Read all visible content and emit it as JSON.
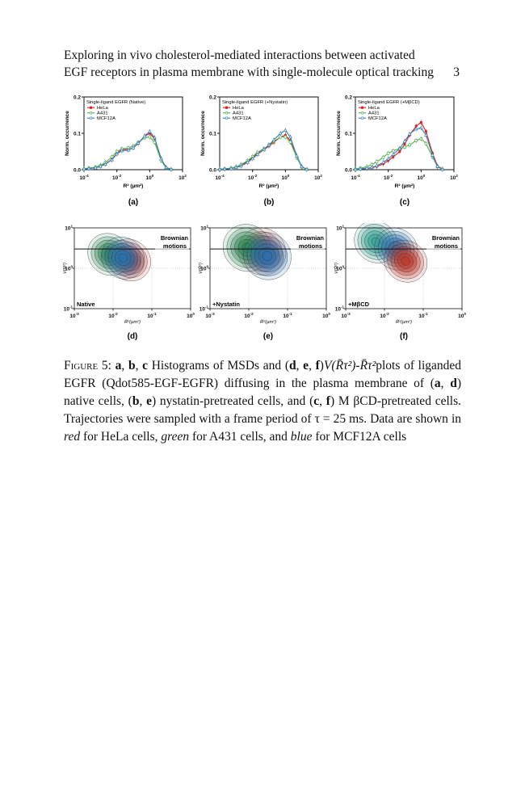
{
  "header": {
    "title_line1": "Exploring in vivo cholesterol-mediated interactions between activated",
    "title_line2": "EGF receptors in plasma membrane with single-molecule optical tracking",
    "page_number": "3"
  },
  "chart_data": [
    {
      "type": "line",
      "panel_label": "(a)",
      "legend_title": "Single-ligand EGFR (Native)",
      "xlabel": "R² (µm²)",
      "ylabel": "Norm. occurrence",
      "xscale": "log",
      "xlim": [
        0.0001,
        100
      ],
      "ylim": [
        0,
        0.2
      ],
      "x_ticks": [
        "10-4",
        "10-2",
        "100",
        "102"
      ],
      "y_ticks": [
        "0.0",
        "0.1",
        "0.2"
      ],
      "x": [
        0.0001,
        0.0002,
        0.0005,
        0.001,
        0.002,
        0.005,
        0.01,
        0.02,
        0.05,
        0.1,
        0.2,
        0.5,
        1,
        2,
        5,
        10,
        20
      ],
      "series": [
        {
          "name": "HeLa",
          "color": "#e41a1c",
          "values": [
            0.002,
            0.004,
            0.006,
            0.01,
            0.016,
            0.028,
            0.045,
            0.055,
            0.056,
            0.06,
            0.072,
            0.092,
            0.1,
            0.085,
            0.03,
            0.006,
            0.001
          ]
        },
        {
          "name": "A431",
          "color": "#4daf4a",
          "values": [
            0.002,
            0.004,
            0.007,
            0.012,
            0.02,
            0.035,
            0.05,
            0.057,
            0.06,
            0.065,
            0.075,
            0.088,
            0.09,
            0.075,
            0.025,
            0.005,
            0.001
          ]
        },
        {
          "name": "MCF12A",
          "color": "#377eb8",
          "values": [
            0.002,
            0.003,
            0.005,
            0.009,
            0.015,
            0.027,
            0.043,
            0.052,
            0.054,
            0.06,
            0.073,
            0.093,
            0.105,
            0.088,
            0.03,
            0.006,
            0.001
          ]
        }
      ]
    },
    {
      "type": "line",
      "panel_label": "(b)",
      "legend_title": "Single-ligand EGFR (+Nystatin)",
      "xlabel": "R² (µm²)",
      "ylabel": "Norm. occurrence",
      "xscale": "log",
      "xlim": [
        0.0001,
        100
      ],
      "ylim": [
        0,
        0.2
      ],
      "x_ticks": [
        "10-4",
        "10-2",
        "100",
        "102"
      ],
      "y_ticks": [
        "0.0",
        "0.1",
        "0.2"
      ],
      "x": [
        0.0001,
        0.0002,
        0.0005,
        0.001,
        0.002,
        0.005,
        0.01,
        0.02,
        0.05,
        0.1,
        0.2,
        0.5,
        1,
        2,
        5,
        10,
        20
      ],
      "series": [
        {
          "name": "HeLa",
          "color": "#e41a1c",
          "values": [
            0.001,
            0.002,
            0.004,
            0.007,
            0.012,
            0.022,
            0.033,
            0.045,
            0.055,
            0.065,
            0.075,
            0.09,
            0.095,
            0.08,
            0.035,
            0.008,
            0.001
          ]
        },
        {
          "name": "A431",
          "color": "#4daf4a",
          "values": [
            0.001,
            0.002,
            0.004,
            0.008,
            0.014,
            0.025,
            0.036,
            0.048,
            0.058,
            0.068,
            0.078,
            0.09,
            0.09,
            0.076,
            0.033,
            0.007,
            0.001
          ]
        },
        {
          "name": "MCF12A",
          "color": "#377eb8",
          "values": [
            0.001,
            0.002,
            0.003,
            0.006,
            0.01,
            0.02,
            0.03,
            0.042,
            0.055,
            0.068,
            0.082,
            0.1,
            0.108,
            0.09,
            0.038,
            0.008,
            0.001
          ]
        }
      ]
    },
    {
      "type": "line",
      "panel_label": "(c)",
      "legend_title": "Single-ligand EGFR (+MβCD)",
      "xlabel": "R² (µm²)",
      "ylabel": "Norm. occurrence",
      "xscale": "log",
      "xlim": [
        0.0001,
        100
      ],
      "ylim": [
        0,
        0.2
      ],
      "x_ticks": [
        "10-4",
        "10-2",
        "100",
        "102"
      ],
      "y_ticks": [
        "0.0",
        "0.1",
        "0.2"
      ],
      "x": [
        0.0001,
        0.0002,
        0.0005,
        0.001,
        0.002,
        0.005,
        0.01,
        0.02,
        0.05,
        0.1,
        0.2,
        0.5,
        1,
        2,
        5,
        10,
        20
      ],
      "series": [
        {
          "name": "HeLa",
          "color": "#e41a1c",
          "values": [
            0.001,
            0.002,
            0.003,
            0.005,
            0.009,
            0.016,
            0.025,
            0.035,
            0.05,
            0.07,
            0.095,
            0.12,
            0.13,
            0.105,
            0.045,
            0.01,
            0.002
          ]
        },
        {
          "name": "A431",
          "color": "#4daf4a",
          "values": [
            0.002,
            0.004,
            0.008,
            0.014,
            0.022,
            0.034,
            0.045,
            0.052,
            0.058,
            0.062,
            0.068,
            0.08,
            0.085,
            0.072,
            0.035,
            0.008,
            0.001
          ]
        },
        {
          "name": "MCF12A",
          "color": "#377eb8",
          "values": [
            0.001,
            0.002,
            0.004,
            0.006,
            0.011,
            0.02,
            0.03,
            0.042,
            0.058,
            0.078,
            0.098,
            0.112,
            0.115,
            0.095,
            0.04,
            0.009,
            0.001
          ]
        }
      ]
    },
    {
      "type": "heatmap",
      "panel_label": "(d)",
      "annotation": "Native",
      "region_label_1": "Brownian",
      "region_label_2": "motions",
      "xlabel": "R̄²(µm²)",
      "ylabel": "V(R̄²)",
      "xscale": "log",
      "yscale": "log",
      "xlim": [
        0.001,
        1
      ],
      "ylim": [
        0.1,
        10
      ],
      "x_ticks": [
        "10-3",
        "10-2",
        "10-1",
        "100"
      ],
      "y_ticks": [
        "10-1",
        "100",
        "101"
      ],
      "brownian_line_y": 3,
      "clouds": [
        {
          "name": "HeLa",
          "color": "#c0392b",
          "center": [
            0.026,
            1.6
          ],
          "spread": [
            0.55,
            0.35
          ]
        },
        {
          "name": "A431",
          "color": "#2e8b57",
          "center": [
            0.008,
            2.2
          ],
          "spread": [
            0.55,
            0.35
          ]
        },
        {
          "name": "MCF12A",
          "color": "#2a6fb0",
          "center": [
            0.018,
            1.8
          ],
          "spread": [
            0.55,
            0.35
          ]
        }
      ]
    },
    {
      "type": "heatmap",
      "panel_label": "(e)",
      "annotation": "+Nystatin",
      "region_label_1": "Brownian",
      "region_label_2": "motions",
      "xlabel": "R̄²(µm²)",
      "ylabel": "V(R̄²)",
      "xscale": "log",
      "yscale": "log",
      "xlim": [
        0.001,
        1
      ],
      "ylim": [
        0.1,
        10
      ],
      "x_ticks": [
        "10-3",
        "10-2",
        "10-1",
        "100"
      ],
      "y_ticks": [
        "10-1",
        "100",
        "101"
      ],
      "brownian_line_y": 3,
      "clouds": [
        {
          "name": "HeLa",
          "color": "#c0392b",
          "center": [
            0.022,
            2.6
          ],
          "spread": [
            0.6,
            0.4
          ]
        },
        {
          "name": "A431",
          "color": "#2e8b57",
          "center": [
            0.009,
            3.2
          ],
          "spread": [
            0.6,
            0.4
          ]
        },
        {
          "name": "MCF12A",
          "color": "#2a6fb0",
          "center": [
            0.03,
            2.0
          ],
          "spread": [
            0.6,
            0.4
          ]
        }
      ]
    },
    {
      "type": "heatmap",
      "panel_label": "(f)",
      "annotation": "+MβCD",
      "region_label_1": "Brownian",
      "region_label_2": "motions",
      "xlabel": "R̄²(µm²)",
      "ylabel": "V(R̄²)",
      "xscale": "log",
      "yscale": "log",
      "xlim": [
        0.001,
        1
      ],
      "ylim": [
        0.1,
        10
      ],
      "x_ticks": [
        "10-3",
        "10-2",
        "10-1",
        "100"
      ],
      "y_ticks": [
        "10-1",
        "100",
        "101"
      ],
      "brownian_line_y": 3,
      "clouds": [
        {
          "name": "A431",
          "color": "#3aa597",
          "center": [
            0.006,
            4.5
          ],
          "spread": [
            0.55,
            0.35
          ]
        },
        {
          "name": "MCF12A",
          "color": "#2a6fb0",
          "center": [
            0.02,
            3.0
          ],
          "spread": [
            0.55,
            0.35
          ]
        },
        {
          "name": "HeLa",
          "color": "#c0392b",
          "center": [
            0.035,
            1.5
          ],
          "spread": [
            0.55,
            0.35
          ]
        }
      ]
    }
  ],
  "caption": {
    "label": "Figure 5:",
    "p01": "a",
    "p02": ", ",
    "p03": "b",
    "p04": ", ",
    "p05": "c",
    "p06": " Histograms of MSDs and (",
    "p07": "d",
    "p08": ", ",
    "p09": "e",
    "p10": ", ",
    "p11": "f",
    "p12": ")",
    "p13": "V(R̄τ²)-R̄τ²",
    "p14": "plots of liganded EGFR (Qdot585-EGF-EGFR) diffusing in the plasma membrane of (",
    "p15": "a",
    "p16": ", ",
    "p17": "d",
    "p18": ") native cells, (",
    "p19": "b",
    "p20": ", ",
    "p21": "e",
    "p22": ") nystatin-pretreated cells, and (",
    "p23": "c",
    "p24": ", ",
    "p25": "f",
    "p26": ") M βCD-pretreated cells. Trajectories were sampled with a frame period of τ = 25 ms. Data are shown in ",
    "p27": "red",
    "p28": " for HeLa cells, ",
    "p29": "green",
    "p30": " for A431 cells, and ",
    "p31": "blue",
    "p32": " for MCF12A cells"
  }
}
